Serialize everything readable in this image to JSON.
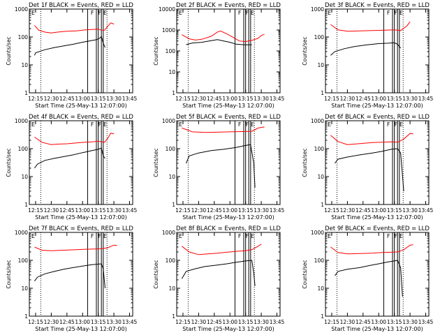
{
  "figure": {
    "xlabel": "Start Time (25-May-13 12:07:00)",
    "ylabel": "Counts/sec",
    "xticks": [
      "12:15",
      "12:30",
      "12:45",
      "13:00",
      "13:15",
      "13:30",
      "13:45"
    ],
    "yticks": [
      "1",
      "10",
      "100",
      "1000"
    ],
    "flag_letters": [
      "F",
      "F",
      "E"
    ]
  },
  "chart_data": [
    {
      "type": "line",
      "title": "Det 1f BLACK = Events, RED = LLD",
      "ylim": [
        1,
        1000
      ],
      "yscale": "log",
      "series": [
        {
          "color": "#ff0000",
          "points": [
            [
              12.233,
              260
            ],
            [
              12.3,
              175
            ],
            [
              12.4,
              150
            ],
            [
              12.5,
              140
            ],
            [
              12.6,
              150
            ],
            [
              12.75,
              160
            ],
            [
              12.9,
              165
            ],
            [
              13.05,
              180
            ],
            [
              13.15,
              185
            ],
            [
              13.25,
              190
            ],
            [
              13.3,
              175
            ],
            [
              13.35,
              175
            ],
            [
              13.4,
              240
            ],
            [
              13.45,
              320
            ],
            [
              13.5,
              290
            ]
          ]
        },
        {
          "color": "#000000",
          "points": [
            [
              12.233,
              22
            ],
            [
              12.25,
              27
            ],
            [
              12.4,
              35
            ],
            [
              12.55,
              42
            ],
            [
              12.7,
              48
            ],
            [
              12.85,
              55
            ],
            [
              13.0,
              65
            ],
            [
              13.15,
              75
            ],
            [
              13.22,
              80
            ],
            [
              13.27,
              90
            ],
            [
              13.3,
              105
            ],
            [
              13.33,
              60
            ],
            [
              13.36,
              42
            ]
          ]
        }
      ]
    },
    {
      "type": "line",
      "title": "Det 2f BLACK = Events, RED = LLD",
      "ylim": [
        1,
        10000
      ],
      "yscale": "log",
      "series": [
        {
          "color": "#ff0000",
          "points": [
            [
              12.233,
              600
            ],
            [
              12.35,
              380
            ],
            [
              12.45,
              330
            ],
            [
              12.55,
              360
            ],
            [
              12.7,
              500
            ],
            [
              12.8,
              800
            ],
            [
              12.85,
              900
            ],
            [
              12.95,
              650
            ],
            [
              13.05,
              450
            ],
            [
              13.15,
              300
            ],
            [
              13.25,
              280
            ],
            [
              13.35,
              320
            ],
            [
              13.45,
              400
            ],
            [
              13.5,
              550
            ],
            [
              13.55,
              620
            ]
          ]
        },
        {
          "color": "#000000",
          "points": [
            [
              12.3,
              200
            ],
            [
              12.4,
              240
            ],
            [
              12.55,
              260
            ],
            [
              12.7,
              310
            ],
            [
              12.8,
              350
            ],
            [
              12.9,
              300
            ],
            [
              13.0,
              260
            ],
            [
              13.1,
              210
            ],
            [
              13.2,
              200
            ],
            [
              13.3,
              195
            ],
            [
              13.35,
              200
            ]
          ]
        }
      ]
    },
    {
      "type": "line",
      "title": "Det 3f BLACK = Events, RED = LLD",
      "ylim": [
        1,
        1000
      ],
      "yscale": "log",
      "series": [
        {
          "color": "#ff0000",
          "points": [
            [
              12.233,
              280
            ],
            [
              12.35,
              180
            ],
            [
              12.5,
              160
            ],
            [
              12.7,
              165
            ],
            [
              12.9,
              170
            ],
            [
              13.1,
              175
            ],
            [
              13.25,
              180
            ],
            [
              13.35,
              170
            ],
            [
              13.45,
              250
            ],
            [
              13.5,
              350
            ]
          ]
        },
        {
          "color": "#000000",
          "points": [
            [
              12.233,
              22
            ],
            [
              12.3,
              30
            ],
            [
              12.45,
              38
            ],
            [
              12.6,
              45
            ],
            [
              12.8,
              52
            ],
            [
              13.0,
              58
            ],
            [
              13.15,
              60
            ],
            [
              13.25,
              62
            ],
            [
              13.3,
              55
            ],
            [
              13.35,
              40
            ]
          ]
        }
      ]
    },
    {
      "type": "line",
      "title": "Det 4f BLACK = Events, RED = LLD",
      "ylim": [
        1,
        1000
      ],
      "yscale": "log",
      "series": [
        {
          "color": "#ff0000",
          "points": [
            [
              12.233,
              260
            ],
            [
              12.35,
              170
            ],
            [
              12.5,
              140
            ],
            [
              12.6,
              145
            ],
            [
              12.75,
              150
            ],
            [
              12.9,
              160
            ],
            [
              13.05,
              170
            ],
            [
              13.15,
              175
            ],
            [
              13.25,
              185
            ],
            [
              13.3,
              175
            ],
            [
              13.35,
              170
            ],
            [
              13.4,
              230
            ],
            [
              13.45,
              360
            ],
            [
              13.5,
              340
            ]
          ]
        },
        {
          "color": "#000000",
          "points": [
            [
              12.233,
              20
            ],
            [
              12.28,
              28
            ],
            [
              12.4,
              38
            ],
            [
              12.55,
              45
            ],
            [
              12.7,
              52
            ],
            [
              12.85,
              60
            ],
            [
              13.0,
              72
            ],
            [
              13.15,
              85
            ],
            [
              13.25,
              95
            ],
            [
              13.3,
              105
            ],
            [
              13.33,
              55
            ],
            [
              13.36,
              45
            ]
          ]
        }
      ]
    },
    {
      "type": "line",
      "title": "Det 5f BLACK = Events, RED = LLD",
      "ylim": [
        1,
        1000
      ],
      "yscale": "log",
      "series": [
        {
          "color": "#ff0000",
          "points": [
            [
              12.233,
              550
            ],
            [
              12.4,
              400
            ],
            [
              12.6,
              380
            ],
            [
              12.8,
              390
            ],
            [
              13.0,
              400
            ],
            [
              13.2,
              410
            ],
            [
              13.35,
              420
            ],
            [
              13.45,
              550
            ],
            [
              13.55,
              600
            ]
          ]
        },
        {
          "color": "#000000",
          "points": [
            [
              12.3,
              30
            ],
            [
              12.35,
              55
            ],
            [
              12.5,
              70
            ],
            [
              12.7,
              85
            ],
            [
              12.9,
              95
            ],
            [
              13.1,
              110
            ],
            [
              13.25,
              130
            ],
            [
              13.33,
              140
            ],
            [
              13.38,
              30
            ],
            [
              13.4,
              4
            ]
          ]
        }
      ]
    },
    {
      "type": "line",
      "title": "Det 6f BLACK = Events, RED = LLD",
      "ylim": [
        1,
        1000
      ],
      "yscale": "log",
      "series": [
        {
          "color": "#ff0000",
          "points": [
            [
              12.233,
              300
            ],
            [
              12.35,
              180
            ],
            [
              12.5,
              140
            ],
            [
              12.6,
              145
            ],
            [
              12.75,
              155
            ],
            [
              12.9,
              165
            ],
            [
              13.05,
              170
            ],
            [
              13.2,
              175
            ],
            [
              13.3,
              170
            ],
            [
              13.4,
              220
            ],
            [
              13.5,
              350
            ],
            [
              13.55,
              340
            ]
          ]
        },
        {
          "color": "#000000",
          "points": [
            [
              12.3,
              30
            ],
            [
              12.35,
              42
            ],
            [
              12.5,
              50
            ],
            [
              12.7,
              60
            ],
            [
              12.9,
              70
            ],
            [
              13.05,
              80
            ],
            [
              13.2,
              95
            ],
            [
              13.3,
              100
            ],
            [
              13.35,
              70
            ],
            [
              13.4,
              3
            ]
          ]
        }
      ]
    },
    {
      "type": "line",
      "title": "Det 7f BLACK = Events, RED = LLD",
      "ylim": [
        1,
        1000
      ],
      "yscale": "log",
      "series": [
        {
          "color": "#ff0000",
          "points": [
            [
              12.233,
              300
            ],
            [
              12.35,
              230
            ],
            [
              12.5,
              220
            ],
            [
              12.7,
              230
            ],
            [
              12.9,
              240
            ],
            [
              13.05,
              250
            ],
            [
              13.2,
              255
            ],
            [
              13.3,
              260
            ],
            [
              13.4,
              280
            ],
            [
              13.5,
              350
            ],
            [
              13.55,
              340
            ]
          ]
        },
        {
          "color": "#000000",
          "points": [
            [
              12.233,
              18
            ],
            [
              12.28,
              25
            ],
            [
              12.4,
              33
            ],
            [
              12.55,
              40
            ],
            [
              12.7,
              48
            ],
            [
              12.85,
              55
            ],
            [
              13.0,
              62
            ],
            [
              13.15,
              70
            ],
            [
              13.3,
              75
            ],
            [
              13.33,
              50
            ],
            [
              13.36,
              10
            ]
          ]
        }
      ]
    },
    {
      "type": "line",
      "title": "Det 8f BLACK = Events, RED = LLD",
      "ylim": [
        1,
        1000
      ],
      "yscale": "log",
      "series": [
        {
          "color": "#ff0000",
          "points": [
            [
              12.233,
              320
            ],
            [
              12.35,
              200
            ],
            [
              12.5,
              160
            ],
            [
              12.65,
              170
            ],
            [
              12.8,
              180
            ],
            [
              12.95,
              195
            ],
            [
              13.1,
              210
            ],
            [
              13.25,
              220
            ],
            [
              13.35,
              240
            ],
            [
              13.45,
              320
            ],
            [
              13.5,
              380
            ]
          ]
        },
        {
          "color": "#000000",
          "points": [
            [
              12.233,
              22
            ],
            [
              12.3,
              40
            ],
            [
              12.45,
              50
            ],
            [
              12.6,
              60
            ],
            [
              12.8,
              68
            ],
            [
              12.95,
              75
            ],
            [
              13.1,
              85
            ],
            [
              13.25,
              95
            ],
            [
              13.35,
              100
            ],
            [
              13.38,
              35
            ],
            [
              13.4,
              12
            ]
          ]
        }
      ]
    },
    {
      "type": "line",
      "title": "Det 9f BLACK = Events, RED = LLD",
      "ylim": [
        1,
        1000
      ],
      "yscale": "log",
      "series": [
        {
          "color": "#ff0000",
          "points": [
            [
              12.233,
              300
            ],
            [
              12.35,
              190
            ],
            [
              12.5,
              170
            ],
            [
              12.7,
              175
            ],
            [
              12.9,
              180
            ],
            [
              13.05,
              190
            ],
            [
              13.2,
              195
            ],
            [
              13.3,
              200
            ],
            [
              13.4,
              240
            ],
            [
              13.5,
              350
            ],
            [
              13.55,
              360
            ]
          ]
        },
        {
          "color": "#000000",
          "points": [
            [
              12.3,
              28
            ],
            [
              12.35,
              40
            ],
            [
              12.5,
              48
            ],
            [
              12.7,
              55
            ],
            [
              12.85,
              65
            ],
            [
              13.0,
              75
            ],
            [
              13.15,
              88
            ],
            [
              13.25,
              95
            ],
            [
              13.3,
              100
            ],
            [
              13.35,
              55
            ],
            [
              13.38,
              5
            ]
          ]
        }
      ]
    }
  ]
}
